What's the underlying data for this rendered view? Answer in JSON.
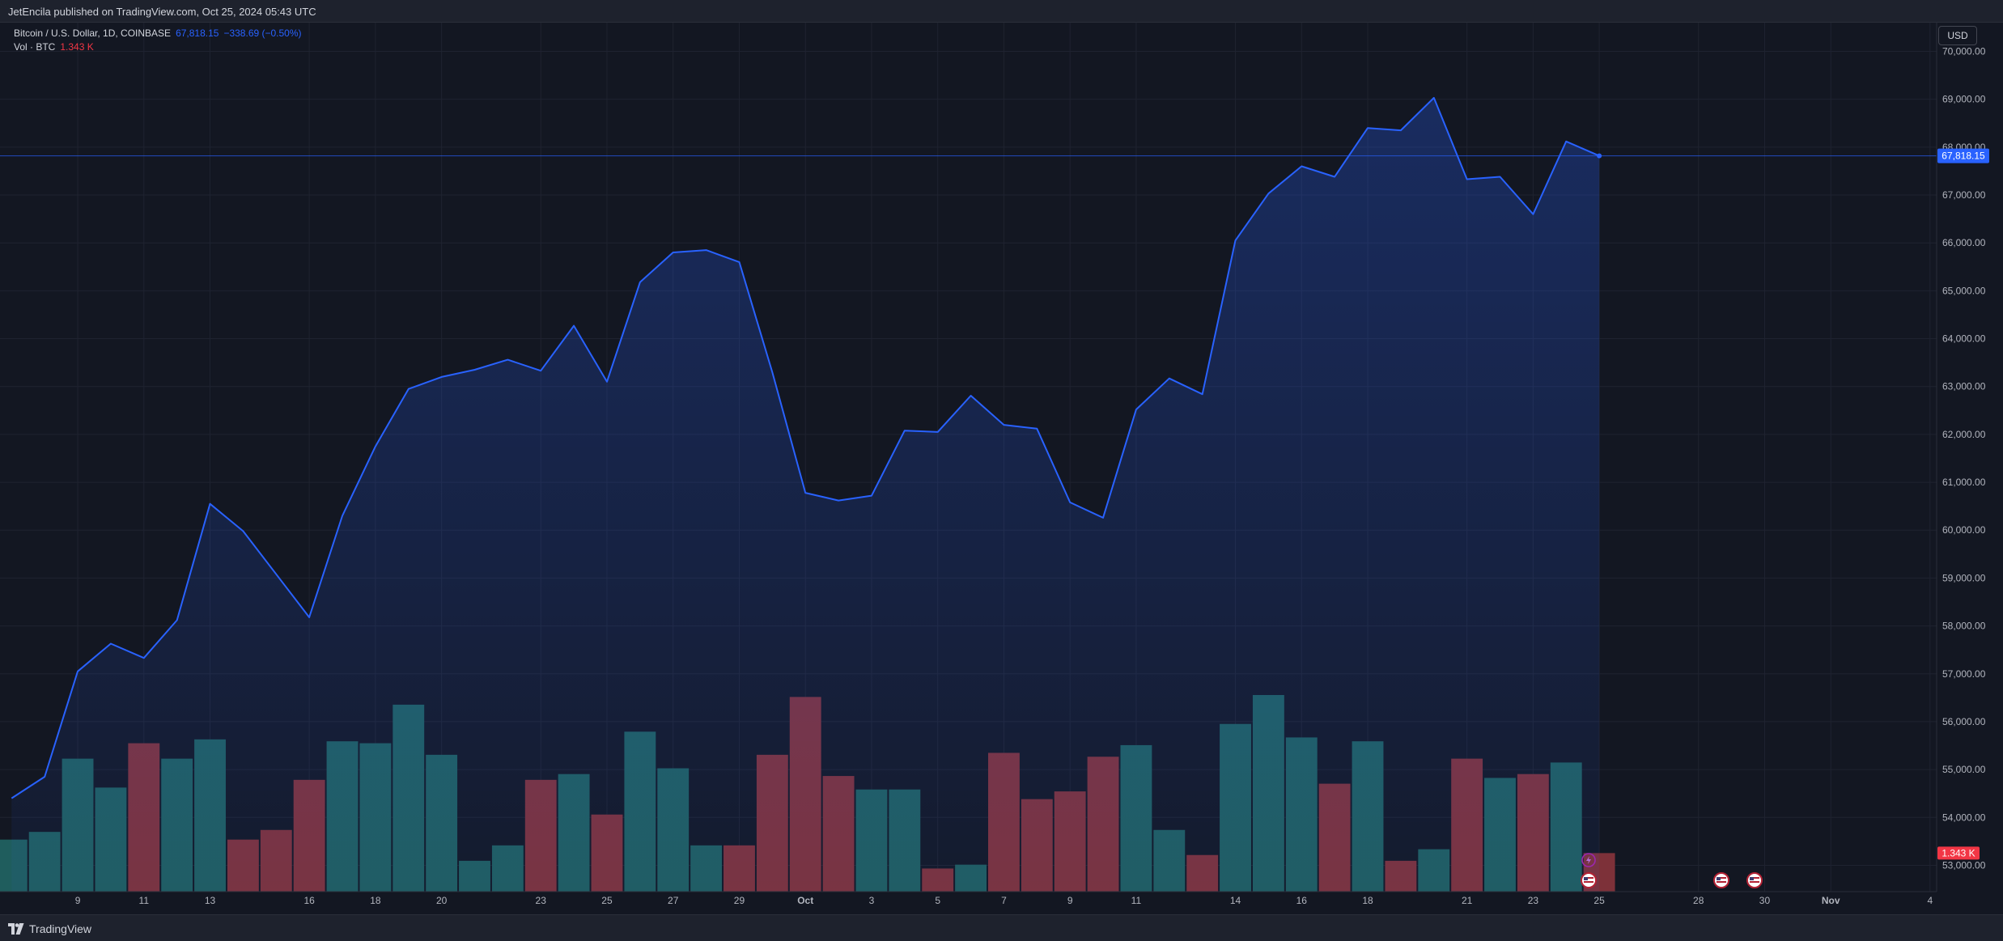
{
  "header": {
    "publisher": "JetEncila published on TradingView.com, Oct 25, 2024 05:43 UTC"
  },
  "legend": {
    "symbol": "Bitcoin / U.S. Dollar, 1D, COINBASE",
    "last": "67,818.15",
    "change": "−338.69 (−0.50%)",
    "vol_label": "Vol · BTC",
    "vol_value": "1.343 K"
  },
  "currency_button": "USD",
  "footer": {
    "brand": "TradingView"
  },
  "colors": {
    "background": "#131722",
    "grid": "#1f2330",
    "line": "#2962ff",
    "vol_up": "#1f5d5d",
    "vol_down": "#7d3139",
    "axis_text": "#b2b5be",
    "price_label_bg": "#2962ff",
    "vol_label_bg": "#f23645"
  },
  "chart_data": {
    "type": "area",
    "title": "Bitcoin / U.S. Dollar, 1D, COINBASE",
    "last_price_label": "67,818.15",
    "last_volume_label": "1.343 K",
    "y_ticks": [
      "53,000.00",
      "54,000.00",
      "55,000.00",
      "56,000.00",
      "57,000.00",
      "58,000.00",
      "59,000.00",
      "60,000.00",
      "61,000.00",
      "62,000.00",
      "63,000.00",
      "64,000.00",
      "65,000.00",
      "66,000.00",
      "67,000.00",
      "68,000.00",
      "69,000.00",
      "70,000.00"
    ],
    "y_tick_values": [
      53000,
      54000,
      55000,
      56000,
      57000,
      58000,
      59000,
      60000,
      61000,
      62000,
      63000,
      64000,
      65000,
      66000,
      67000,
      68000,
      69000,
      70000
    ],
    "ylim": [
      52450,
      70600
    ],
    "x_labels": [
      {
        "label": "9",
        "day": 2
      },
      {
        "label": "11",
        "day": 4
      },
      {
        "label": "13",
        "day": 6
      },
      {
        "label": "16",
        "day": 9
      },
      {
        "label": "18",
        "day": 11
      },
      {
        "label": "20",
        "day": 13
      },
      {
        "label": "23",
        "day": 16
      },
      {
        "label": "25",
        "day": 18
      },
      {
        "label": "27",
        "day": 20
      },
      {
        "label": "29",
        "day": 22
      },
      {
        "label": "Oct",
        "day": 24
      },
      {
        "label": "3",
        "day": 26
      },
      {
        "label": "5",
        "day": 28
      },
      {
        "label": "7",
        "day": 30
      },
      {
        "label": "9",
        "day": 32
      },
      {
        "label": "11",
        "day": 34
      },
      {
        "label": "14",
        "day": 37
      },
      {
        "label": "16",
        "day": 39
      },
      {
        "label": "18",
        "day": 41
      },
      {
        "label": "21",
        "day": 44
      },
      {
        "label": "23",
        "day": 46
      },
      {
        "label": "25",
        "day": 48
      },
      {
        "label": "28",
        "day": 51
      },
      {
        "label": "30",
        "day": 53
      },
      {
        "label": "Nov",
        "day": 55
      },
      {
        "label": "4",
        "day": 58
      }
    ],
    "x_range_days": [
      -0.35,
      58.2
    ],
    "series": [
      {
        "type": "line",
        "values": [
          54400,
          54850,
          57050,
          57630,
          57330,
          58120,
          60550,
          59980,
          59080,
          58180,
          60300,
          61750,
          62950,
          63200,
          63350,
          63560,
          63330,
          64270,
          63100,
          65180,
          65800,
          65850,
          65600,
          63300,
          60780,
          60620,
          60720,
          62080,
          62050,
          62810,
          62200,
          62120,
          60580,
          60260,
          62520,
          63170,
          62840,
          66050,
          67030,
          67600,
          67380,
          68400,
          68350,
          69030,
          67330,
          67380,
          66600,
          68120,
          67818.15
        ]
      },
      {
        "type": "volume",
        "values": [
          1.35,
          1.55,
          3.45,
          2.7,
          3.85,
          3.45,
          3.95,
          1.35,
          1.6,
          2.9,
          3.9,
          3.85,
          4.85,
          3.55,
          0.8,
          1.2,
          2.9,
          3.05,
          2.0,
          4.15,
          3.2,
          1.2,
          1.2,
          3.55,
          5.05,
          3.0,
          2.65,
          2.65,
          0.6,
          0.7,
          3.6,
          2.4,
          2.6,
          3.5,
          3.8,
          1.6,
          0.95,
          4.35,
          5.1,
          4.0,
          2.8,
          3.9,
          0.8,
          1.1,
          3.45,
          2.95,
          3.05,
          3.35,
          1.0
        ],
        "up": [
          true,
          true,
          true,
          true,
          false,
          true,
          true,
          false,
          false,
          false,
          true,
          true,
          true,
          true,
          true,
          true,
          false,
          true,
          false,
          true,
          true,
          true,
          false,
          false,
          false,
          false,
          true,
          true,
          false,
          true,
          false,
          false,
          false,
          false,
          true,
          true,
          false,
          true,
          true,
          true,
          false,
          true,
          false,
          true,
          false,
          true,
          false,
          true,
          false
        ]
      }
    ]
  }
}
